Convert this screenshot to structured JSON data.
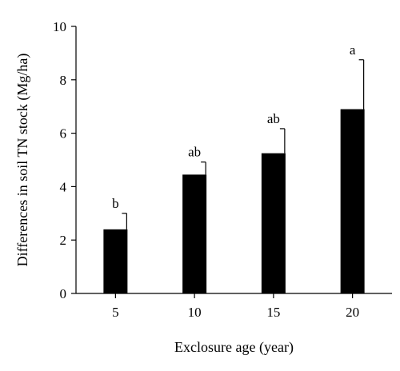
{
  "chart_data": {
    "type": "bar",
    "categories": [
      "5",
      "10",
      "15",
      "20"
    ],
    "values": [
      2.4,
      4.45,
      5.25,
      6.9
    ],
    "error_upper": [
      0.6,
      0.47,
      0.92,
      1.85
    ],
    "data_labels": [
      "b",
      "ab",
      "ab",
      "a"
    ],
    "xlabel": "Exclosure age (year)",
    "ylabel": "Differences in soil TN stock (Mg/ha)",
    "ylim": [
      0,
      10
    ],
    "yticks": [
      "0",
      "2",
      "4",
      "6",
      "8",
      "10"
    ],
    "grid": false,
    "legend": "none",
    "bar_color": "#000000"
  }
}
